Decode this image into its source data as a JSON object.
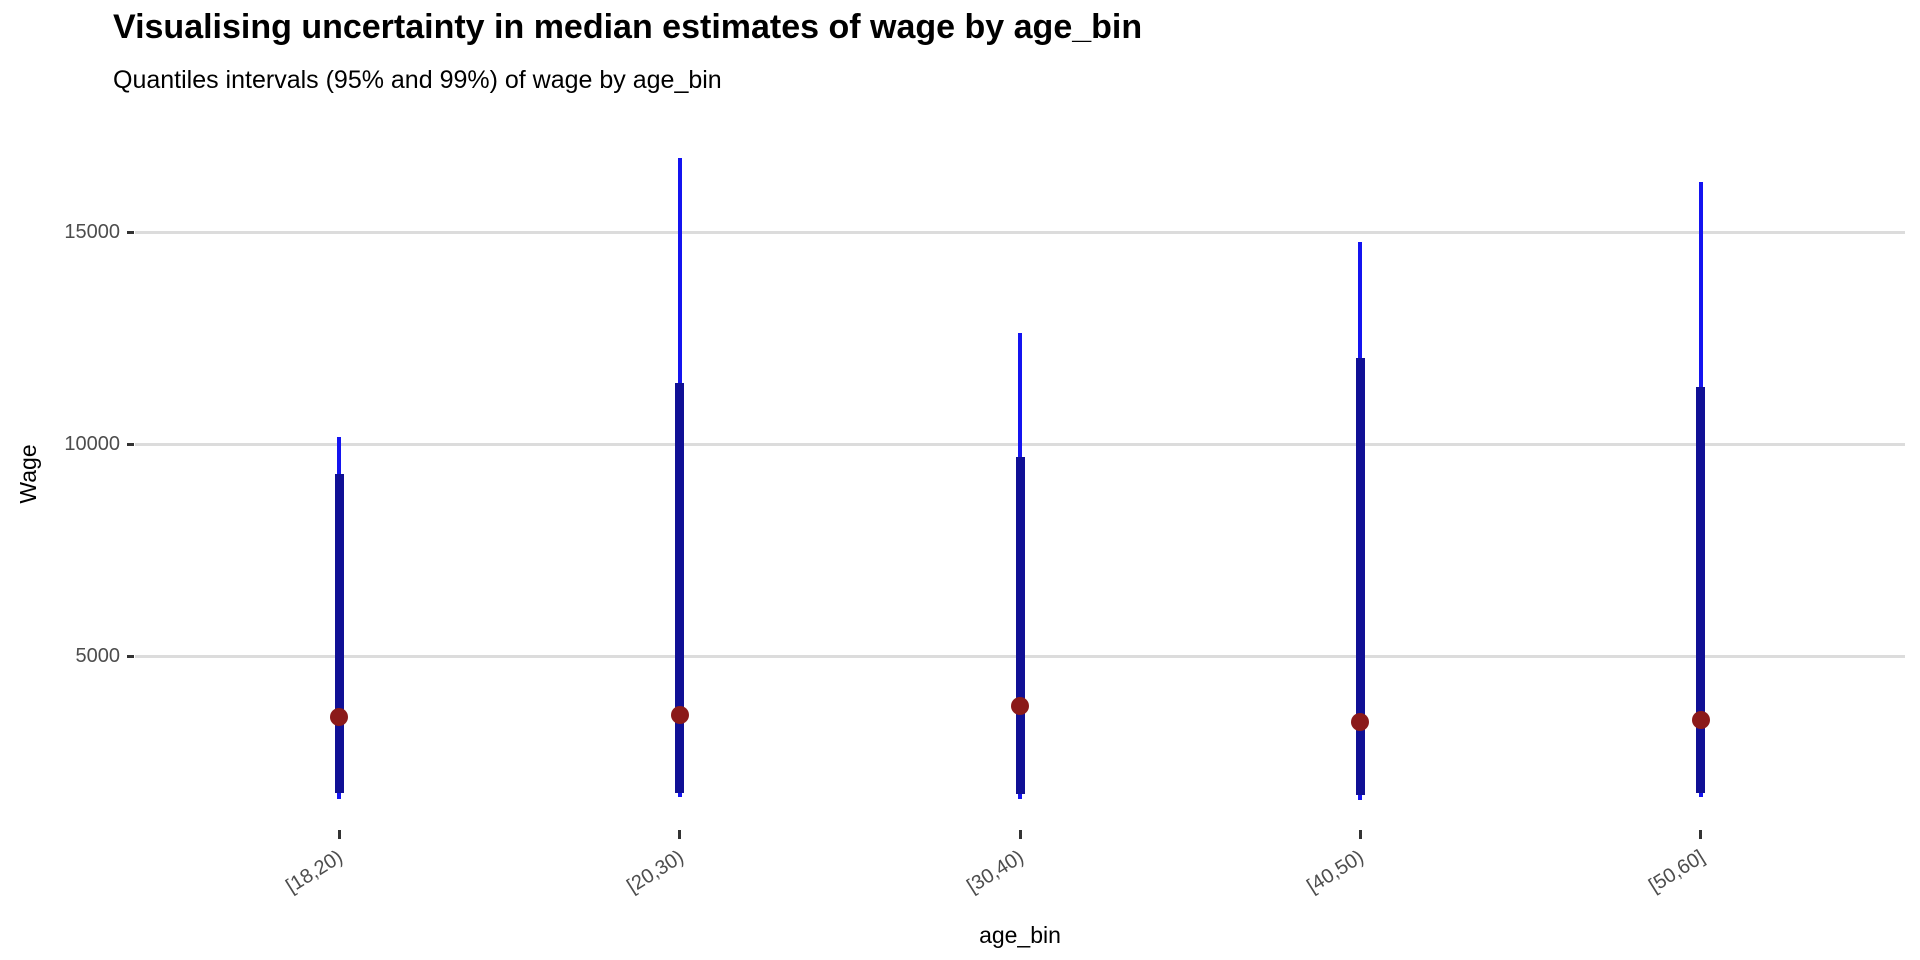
{
  "page": {
    "background": "#ffffff"
  },
  "chart_data": {
    "type": "interval_pointrange",
    "title": "Visualising uncertainty in median estimates of wage by age_bin",
    "subtitle": "Quantiles intervals (95% and 99%) of wage by age_bin",
    "xlabel": "age_bin",
    "ylabel": "Wage",
    "categories": [
      "[18,20)",
      "[20,30)",
      "[30,40)",
      "[40,50)",
      "[50,60]"
    ],
    "series": [
      {
        "name": "99% interval",
        "role": "outer_interval",
        "values": [
          [
            1650,
            10190
          ],
          [
            1700,
            16770
          ],
          [
            1650,
            12640
          ],
          [
            1630,
            14790
          ],
          [
            1700,
            16200
          ]
        ]
      },
      {
        "name": "95% interval",
        "role": "inner_interval",
        "values": [
          [
            1790,
            9320
          ],
          [
            1800,
            11460
          ],
          [
            1770,
            9720
          ],
          [
            1750,
            12050
          ],
          [
            1800,
            11370
          ]
        ]
      },
      {
        "name": "median",
        "role": "point",
        "values": [
          3590,
          3630,
          3840,
          3460,
          3510
        ]
      }
    ],
    "yticks": [
      5000,
      10000,
      15000
    ],
    "ylim": [
      920,
      17710
    ],
    "grid": "horizontal-major-only",
    "legend": "none",
    "colors": {
      "outer_interval": "#1414f0",
      "inner_interval": "#101095",
      "point": "#8b1a1a",
      "gridline": "#dcdcdc",
      "tick_mark": "#333333",
      "tick_label": "#4d4d4d"
    }
  }
}
